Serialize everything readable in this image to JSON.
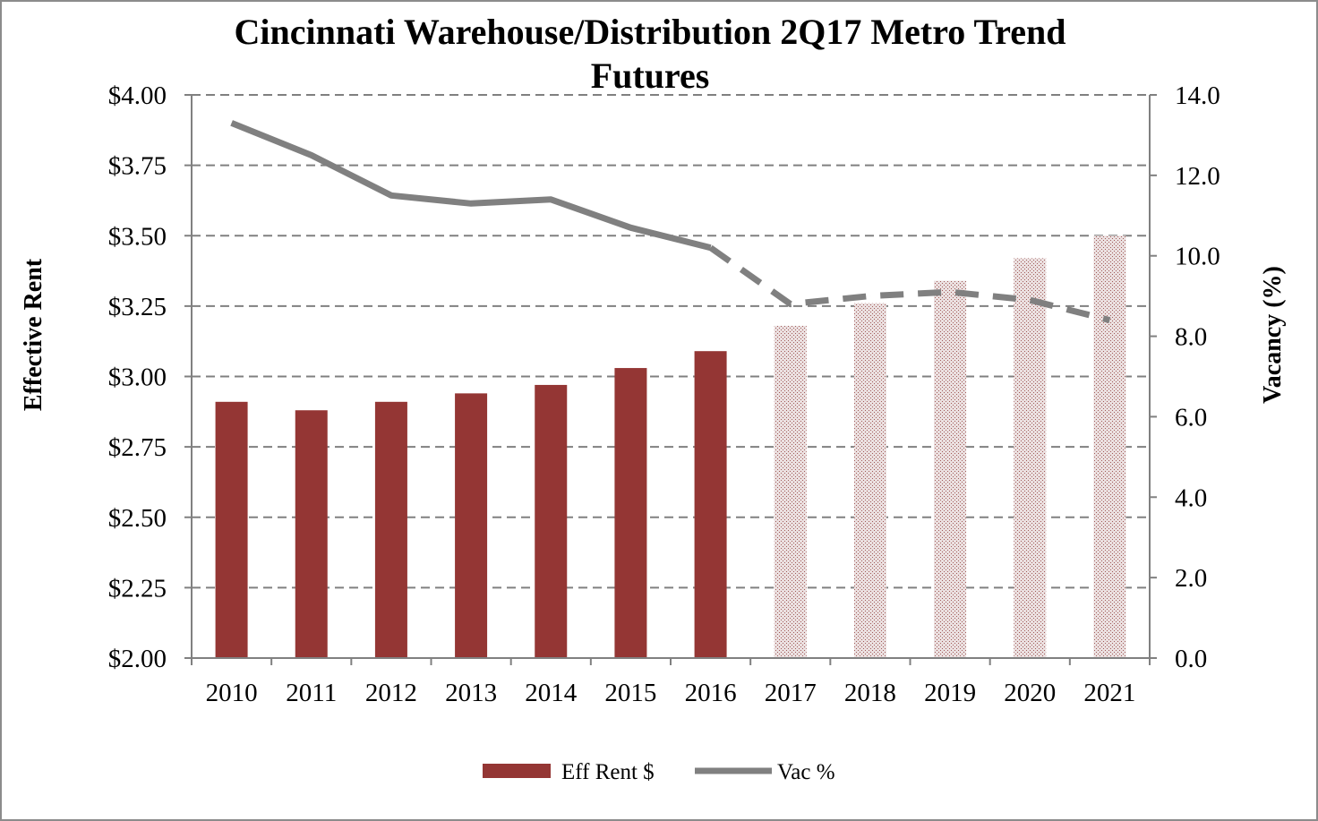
{
  "chart_data": {
    "type": "bar",
    "title_line1": "Cincinnati Warehouse/Distribution 2Q17 Metro Trend",
    "title_line2": "Futures",
    "ylabel": "Effective Rent",
    "y2label": "Vacancy (%)",
    "categories": [
      "2010",
      "2011",
      "2012",
      "2013",
      "2014",
      "2015",
      "2016",
      "2017",
      "2018",
      "2019",
      "2020",
      "2021"
    ],
    "ylim": [
      2.0,
      4.0
    ],
    "y_ticks": [
      "$2.00",
      "$2.25",
      "$2.50",
      "$2.75",
      "$3.00",
      "$3.25",
      "$3.50",
      "$3.75",
      "$4.00"
    ],
    "y2lim": [
      0.0,
      14.0
    ],
    "y2_ticks": [
      "0.0",
      "2.0",
      "4.0",
      "6.0",
      "8.0",
      "10.0",
      "12.0",
      "14.0"
    ],
    "grid": "horizontal dashed",
    "legend_position": "bottom",
    "forecast_start_index": 7,
    "series": [
      {
        "name": "Eff Rent $",
        "type": "bar",
        "axis": "left",
        "values": [
          2.91,
          2.88,
          2.91,
          2.94,
          2.97,
          3.03,
          3.09,
          3.18,
          3.26,
          3.34,
          3.42,
          3.5
        ],
        "color": "#943634",
        "forecast_color": "#d9c3c3"
      },
      {
        "name": "Vac %",
        "type": "line",
        "axis": "right",
        "values": [
          13.3,
          12.5,
          11.5,
          11.3,
          11.4,
          10.7,
          10.2,
          8.8,
          9.0,
          9.1,
          8.9,
          8.4
        ],
        "color": "#808080"
      }
    ]
  }
}
